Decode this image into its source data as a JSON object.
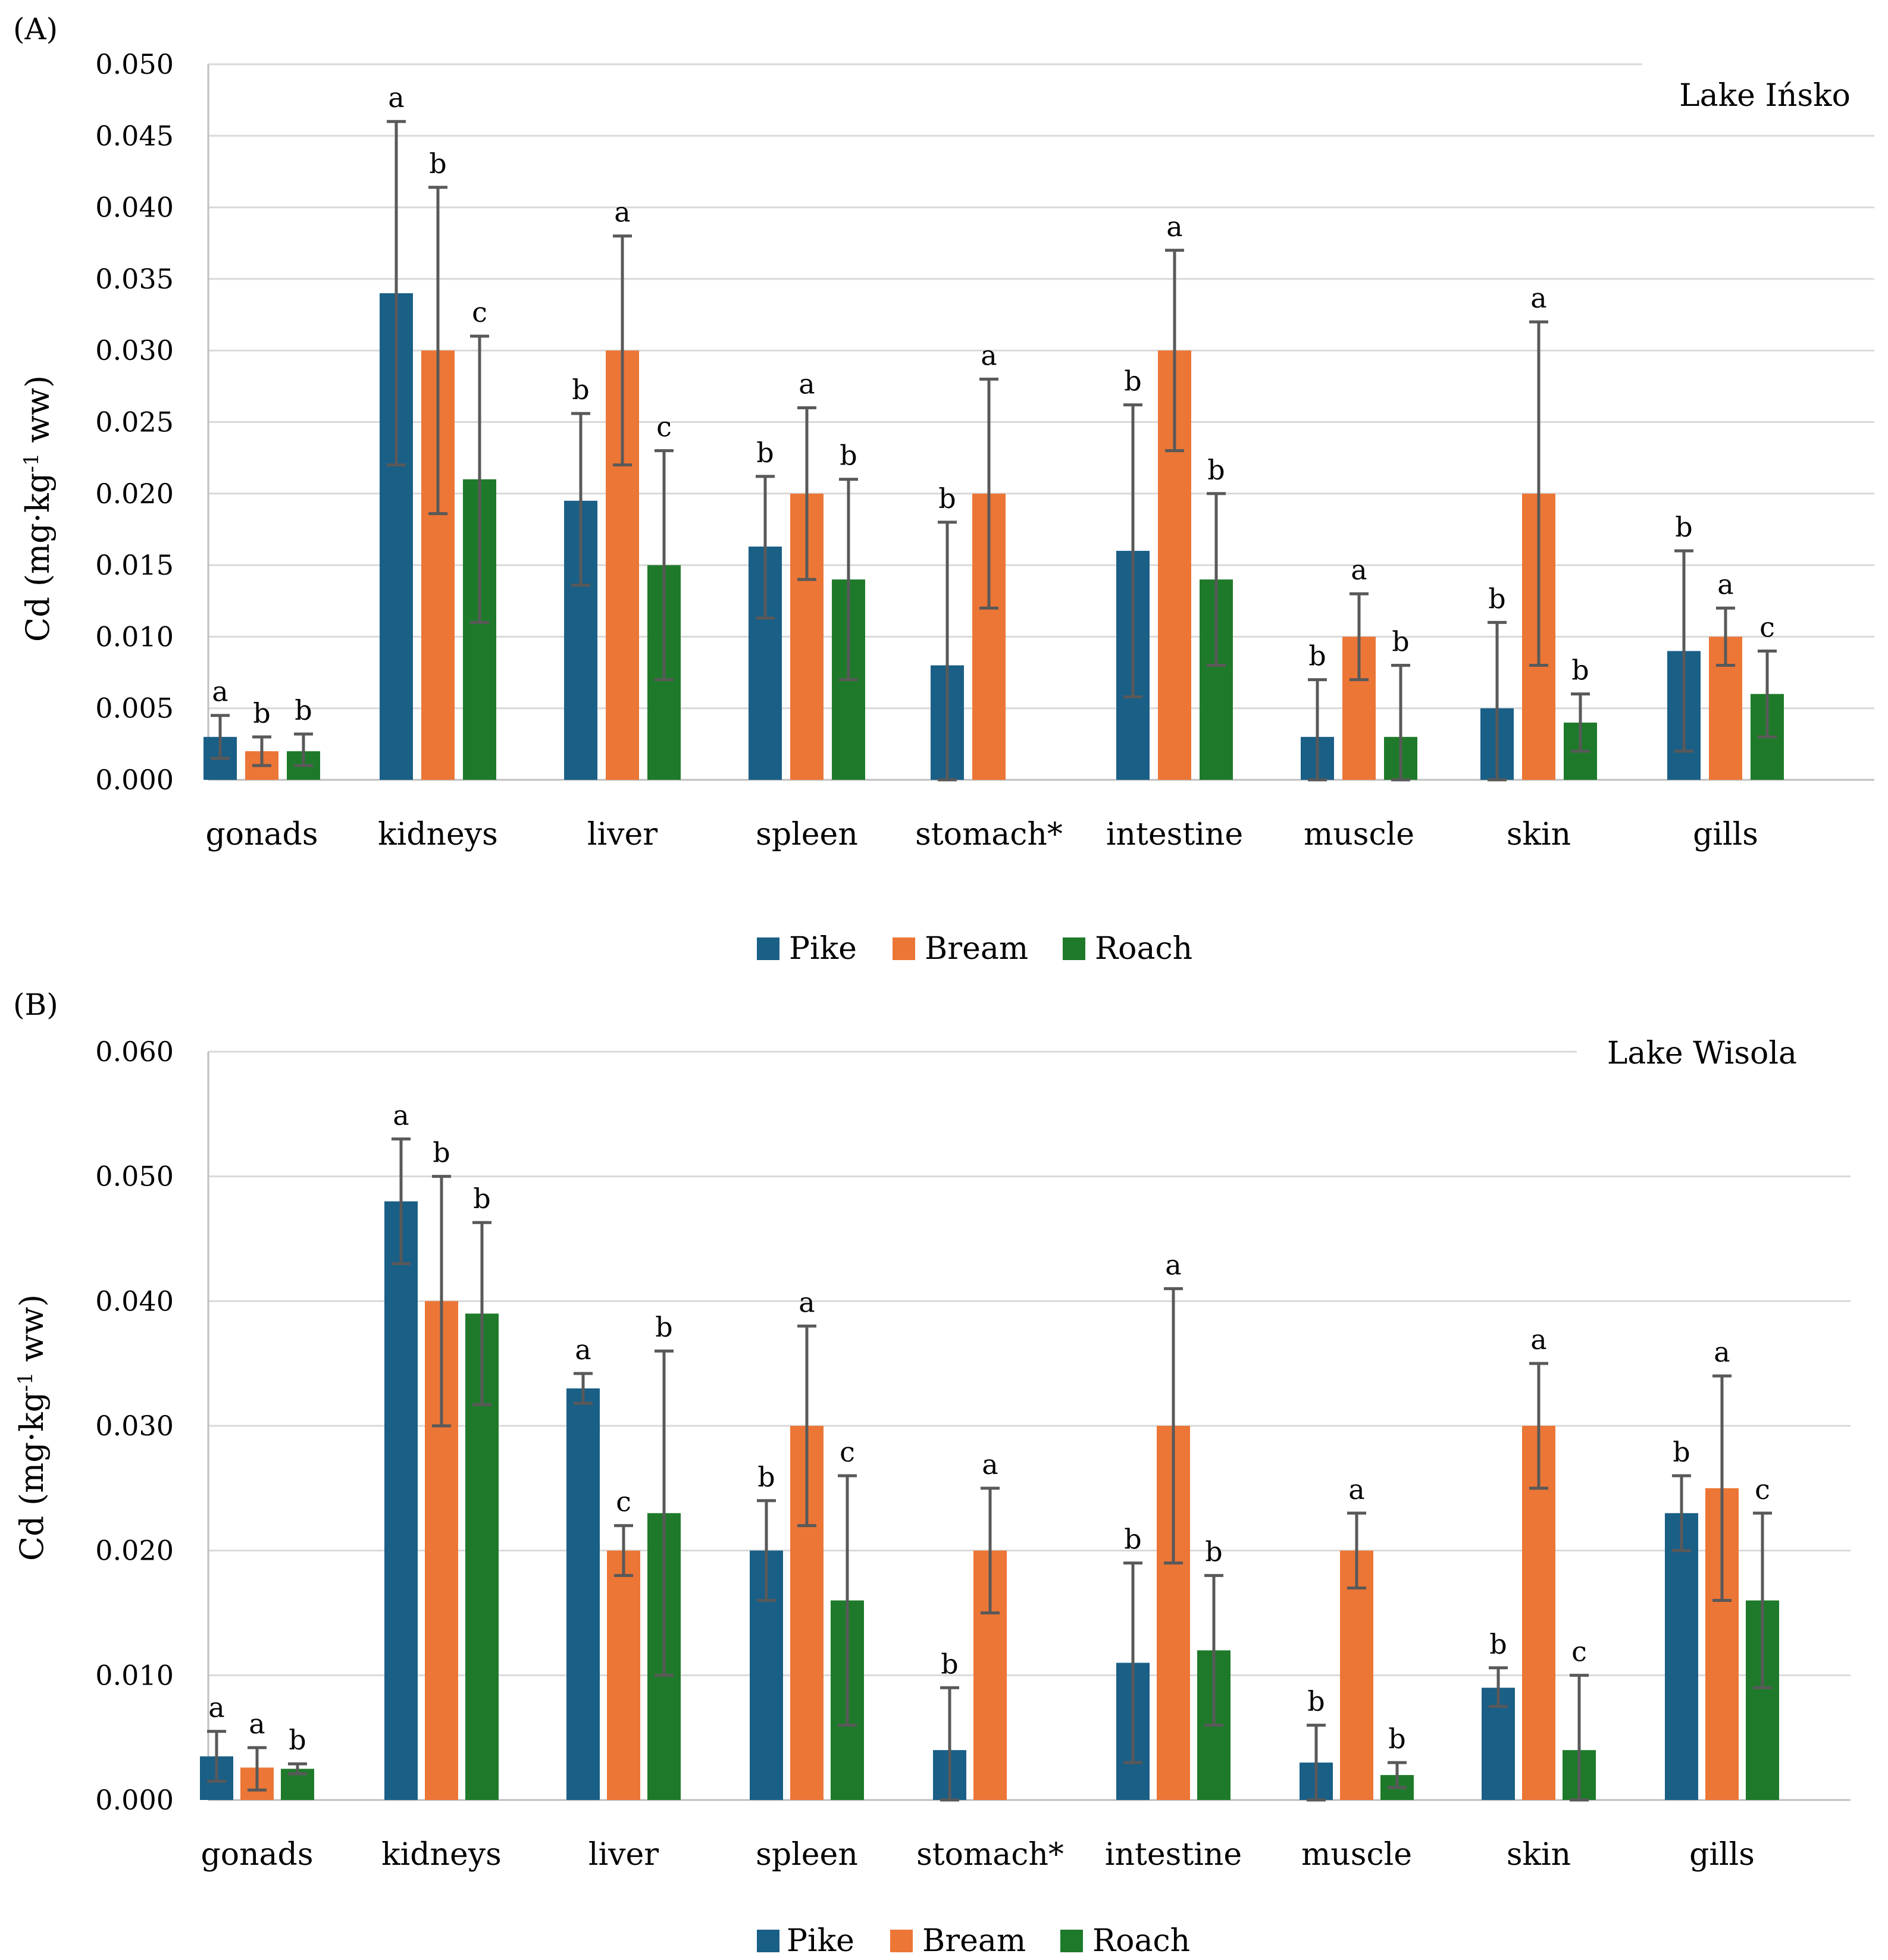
{
  "legend": [
    {
      "name": "Pike",
      "color": "#1a5f86"
    },
    {
      "name": "Bream",
      "color": "#ec7636"
    },
    {
      "name": "Roach",
      "color": "#1e7a2a"
    }
  ],
  "chart_data": [
    {
      "type": "bar",
      "panel_label": "(A)",
      "annotation": "Lake Ińsko",
      "ylabel_main": "Cd (mg·kg",
      "ylabel_sup": "-1",
      "ylabel_end": " ww)",
      "ylim": [
        0,
        0.05
      ],
      "yticks": [
        "0.000",
        "0.005",
        "0.010",
        "0.015",
        "0.020",
        "0.025",
        "0.030",
        "0.035",
        "0.040",
        "0.045",
        "0.050"
      ],
      "categories": [
        "gonads",
        "kidneys",
        "liver",
        "spleen",
        "stomach*",
        "intestine",
        "muscle",
        "skin",
        "gills"
      ],
      "series": [
        {
          "name": "Pike",
          "values": [
            0.003,
            0.034,
            0.0195,
            0.0163,
            0.008,
            0.016,
            0.003,
            0.005,
            0.009
          ],
          "err_low": [
            0.0015,
            0.022,
            0.0136,
            0.0113,
            0.0,
            0.0058,
            0.0,
            0.0,
            0.002
          ],
          "err_high": [
            0.0045,
            0.046,
            0.0256,
            0.0212,
            0.018,
            0.0262,
            0.007,
            0.011,
            0.016
          ],
          "letters": [
            "a",
            "a",
            "b",
            "b",
            "b",
            "b",
            "b",
            "b",
            "b"
          ]
        },
        {
          "name": "Bream",
          "values": [
            0.002,
            0.03,
            0.03,
            0.02,
            0.02,
            0.03,
            0.01,
            0.02,
            0.01
          ],
          "err_low": [
            0.001,
            0.0186,
            0.022,
            0.014,
            0.012,
            0.023,
            0.007,
            0.008,
            0.008
          ],
          "err_high": [
            0.003,
            0.0414,
            0.038,
            0.026,
            0.028,
            0.037,
            0.013,
            0.032,
            0.012
          ],
          "letters": [
            "b",
            "b",
            "a",
            "a",
            "a",
            "a",
            "a",
            "a",
            "a"
          ]
        },
        {
          "name": "Roach",
          "values": [
            0.002,
            0.021,
            0.015,
            0.014,
            null,
            0.014,
            0.003,
            0.004,
            0.006
          ],
          "err_low": [
            0.001,
            0.011,
            0.007,
            0.007,
            null,
            0.008,
            0.0,
            0.002,
            0.003
          ],
          "err_high": [
            0.0032,
            0.031,
            0.023,
            0.021,
            null,
            0.02,
            0.008,
            0.006,
            0.009
          ],
          "letters": [
            "b",
            "c",
            "c",
            "b",
            "",
            "b",
            "b",
            "b",
            "c"
          ]
        }
      ]
    },
    {
      "type": "bar",
      "panel_label": "(B)",
      "annotation": "Lake Wisola",
      "ylabel_main": "Cd (mg·kg",
      "ylabel_sup": "-1",
      "ylabel_end": " ww)",
      "ylim": [
        0,
        0.06
      ],
      "yticks": [
        "0.000",
        "0.010",
        "0.020",
        "0.030",
        "0.040",
        "0.050",
        "0.060"
      ],
      "categories": [
        "gonads",
        "kidneys",
        "liver",
        "spleen",
        "stomach*",
        "intestine",
        "muscle",
        "skin",
        "gills"
      ],
      "series": [
        {
          "name": "Pike",
          "values": [
            0.0035,
            0.048,
            0.033,
            0.02,
            0.004,
            0.011,
            0.003,
            0.009,
            0.023
          ],
          "err_low": [
            0.0015,
            0.043,
            0.0318,
            0.016,
            0.0,
            0.003,
            0.0,
            0.0075,
            0.02
          ],
          "err_high": [
            0.0055,
            0.053,
            0.0342,
            0.024,
            0.009,
            0.019,
            0.006,
            0.0106,
            0.026
          ],
          "letters": [
            "a",
            "a",
            "a",
            "b",
            "b",
            "b",
            "b",
            "b",
            "b"
          ]
        },
        {
          "name": "Bream",
          "values": [
            0.0026,
            0.04,
            0.02,
            0.03,
            0.02,
            0.03,
            0.02,
            0.03,
            0.025
          ],
          "err_low": [
            0.0008,
            0.03,
            0.018,
            0.022,
            0.015,
            0.019,
            0.017,
            0.025,
            0.016
          ],
          "err_high": [
            0.0042,
            0.05,
            0.022,
            0.038,
            0.025,
            0.041,
            0.023,
            0.035,
            0.034
          ],
          "letters": [
            "a",
            "b",
            "c",
            "a",
            "a",
            "a",
            "a",
            "a",
            "a"
          ]
        },
        {
          "name": "Roach",
          "values": [
            0.0025,
            0.039,
            0.023,
            0.016,
            null,
            0.012,
            0.002,
            0.004,
            0.016
          ],
          "err_low": [
            0.0021,
            0.0317,
            0.01,
            0.006,
            null,
            0.006,
            0.001,
            0.0,
            0.009
          ],
          "err_high": [
            0.0029,
            0.0463,
            0.036,
            0.026,
            null,
            0.018,
            0.003,
            0.01,
            0.023
          ],
          "letters": [
            "b",
            "b",
            "b",
            "c",
            "",
            "b",
            "b",
            "c",
            "c"
          ]
        }
      ]
    }
  ]
}
